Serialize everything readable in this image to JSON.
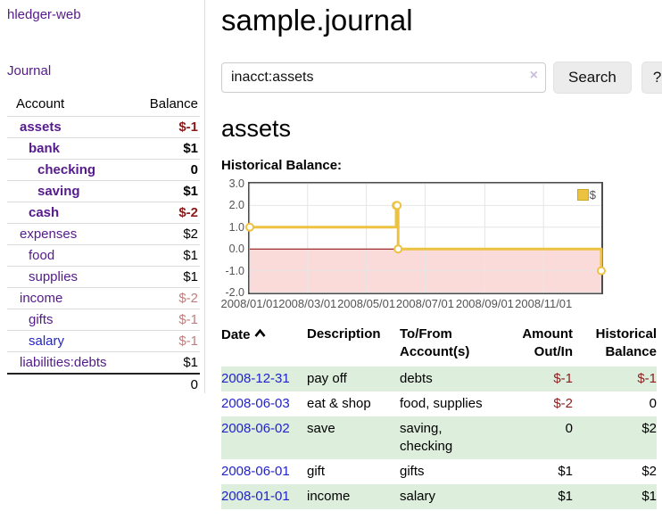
{
  "app": {
    "title": "hledger-web"
  },
  "sidebar": {
    "journal_label": "Journal",
    "accounts": {
      "headers": {
        "account": "Account",
        "balance": "Balance"
      },
      "rows": [
        {
          "name": "assets",
          "balance": "$-1"
        },
        {
          "name": "bank",
          "balance": "$1"
        },
        {
          "name": "checking",
          "balance": "0"
        },
        {
          "name": "saving",
          "balance": "$1"
        },
        {
          "name": "cash",
          "balance": "$-2"
        },
        {
          "name": "expenses",
          "balance": "$2"
        },
        {
          "name": "food",
          "balance": "$1"
        },
        {
          "name": "supplies",
          "balance": "$1"
        },
        {
          "name": "income",
          "balance": "$-2"
        },
        {
          "name": "gifts",
          "balance": "$-1"
        },
        {
          "name": "salary",
          "balance": "$-1"
        },
        {
          "name": "liabilities:debts",
          "balance": "$1"
        }
      ],
      "total": "0"
    }
  },
  "main": {
    "title": "sample.journal"
  },
  "search": {
    "value": "inacct:assets",
    "clear_icon": "×",
    "button_label": "Search",
    "help_label": "?"
  },
  "account": {
    "title": "assets",
    "chart_heading": "Historical Balance:"
  },
  "chart_data": {
    "type": "line",
    "title": "Historical Balance",
    "step": true,
    "grid": true,
    "ylim": [
      -2,
      3
    ],
    "x_range_days": 365,
    "y_ticks": [
      "3.0",
      "2.0",
      "1.0",
      "0.0",
      "-1.0",
      "-2.0"
    ],
    "x_ticks": [
      {
        "label": "2008/01/01",
        "day": 0
      },
      {
        "label": "2008/03/01",
        "day": 60
      },
      {
        "label": "2008/05/01",
        "day": 121
      },
      {
        "label": "2008/07/01",
        "day": 182
      },
      {
        "label": "2008/09/01",
        "day": 244
      },
      {
        "label": "2008/11/01",
        "day": 305
      }
    ],
    "series": [
      {
        "name": "$",
        "dates": [
          "2008-01-01",
          "2008-06-01",
          "2008-06-02",
          "2008-06-03",
          "2008-12-31"
        ],
        "values": [
          1,
          2,
          2,
          0,
          -1
        ],
        "points": [
          [
            0,
            1
          ],
          [
            152,
            2
          ],
          [
            153,
            2
          ],
          [
            154,
            0
          ],
          [
            365,
            -1
          ]
        ]
      }
    ],
    "legend": {
      "label": "$",
      "position": "top-right"
    },
    "colors": {
      "line": "#edc240",
      "negative_fill": "#fbdada",
      "zero_line": "#8b0000"
    }
  },
  "register": {
    "headers": {
      "date": "Date",
      "description": "Description",
      "account_line1": "To/From",
      "account_line2": "Account(s)",
      "amount_line1": "Amount",
      "amount_line2": "Out/In",
      "balance_line1": "Historical",
      "balance_line2": "Balance"
    },
    "rows": [
      {
        "date": "2008-12-31",
        "description": "pay off",
        "accounts": "debts",
        "amount": "$-1",
        "balance": "$-1"
      },
      {
        "date": "2008-06-03",
        "description": "eat & shop",
        "accounts": "food, supplies",
        "amount": "$-2",
        "balance": "0"
      },
      {
        "date": "2008-06-02",
        "description": "save",
        "accounts": "saving, checking",
        "amount": "0",
        "balance": "$2"
      },
      {
        "date": "2008-06-01",
        "description": "gift",
        "accounts": "gifts",
        "amount": "$1",
        "balance": "$2"
      },
      {
        "date": "2008-01-01",
        "description": "income",
        "accounts": "salary",
        "amount": "$1",
        "balance": "$1"
      }
    ]
  }
}
